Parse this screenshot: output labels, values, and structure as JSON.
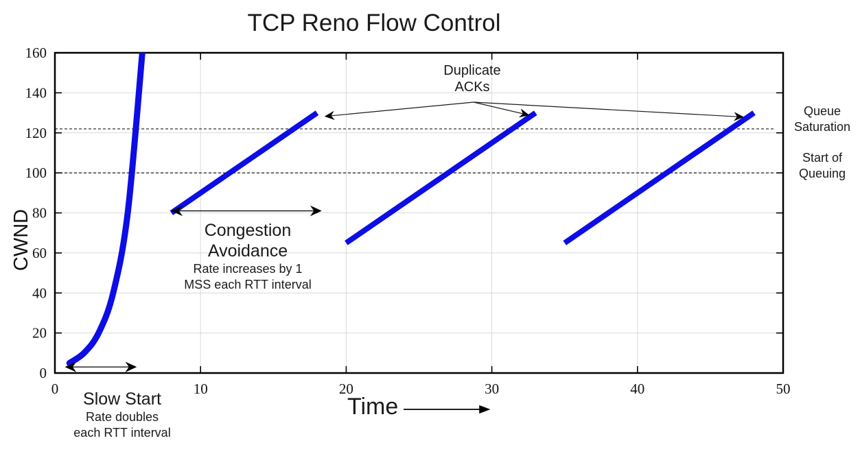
{
  "title": "TCP Reno Flow Control",
  "colors": {
    "series_blue": "#0d0de6",
    "grid": "#d9d9d9",
    "axis": "#000000",
    "annotation": "#1a1a1a"
  },
  "chart_data": {
    "type": "line",
    "title": "TCP Reno Flow Control",
    "xlabel": "Time",
    "ylabel": "CWND",
    "xlim": [
      0,
      50
    ],
    "ylim": [
      0,
      160
    ],
    "x_ticks": [
      0,
      10,
      20,
      30,
      40,
      50
    ],
    "y_ticks": [
      0,
      20,
      40,
      60,
      80,
      100,
      120,
      140,
      160
    ],
    "grid": true,
    "legend": "none",
    "series": [
      {
        "name": "slow-start",
        "points": [
          [
            1,
            5
          ],
          [
            2,
            10
          ],
          [
            3,
            20
          ],
          [
            4,
            40
          ],
          [
            5,
            80
          ],
          [
            6,
            160
          ]
        ],
        "smooth": true
      },
      {
        "name": "congestion-avoidance-1",
        "points": [
          [
            8,
            80
          ],
          [
            18,
            130
          ]
        ],
        "smooth": false
      },
      {
        "name": "congestion-avoidance-2",
        "points": [
          [
            20,
            65
          ],
          [
            33,
            130
          ]
        ],
        "smooth": false
      },
      {
        "name": "congestion-avoidance-3",
        "points": [
          [
            35,
            65
          ],
          [
            48,
            130
          ]
        ],
        "smooth": false
      }
    ],
    "reference_lines": [
      {
        "y": 122,
        "label": "Queue Saturation",
        "style": "dashed"
      },
      {
        "y": 100,
        "label": "Start of Queuing",
        "style": "dashed"
      }
    ],
    "range_arrows": [
      {
        "name": "slow-start-duration",
        "x_from": 0.8,
        "x_to": 5.5,
        "at_cwnd": 2
      },
      {
        "name": "congestion-avoidance-duration",
        "x_from": 8.1,
        "x_to": 18.2,
        "at_cwnd": 80
      }
    ]
  },
  "annotations": {
    "slow_start": {
      "heading": "Slow Start",
      "line1": "Rate doubles",
      "line2": "each RTT interval"
    },
    "congestion_avoidance": {
      "heading_line1": "Congestion",
      "heading_line2": "Avoidance",
      "line1": "Rate increases by 1",
      "line2": "MSS each RTT interval"
    },
    "duplicate_acks": {
      "line1": "Duplicate",
      "line2": "ACKs"
    },
    "queue_saturation": {
      "line1": "Queue",
      "line2": "Saturation"
    },
    "start_of_queuing": {
      "line1": "Start of",
      "line2": "Queuing"
    },
    "time_label": "Time"
  }
}
